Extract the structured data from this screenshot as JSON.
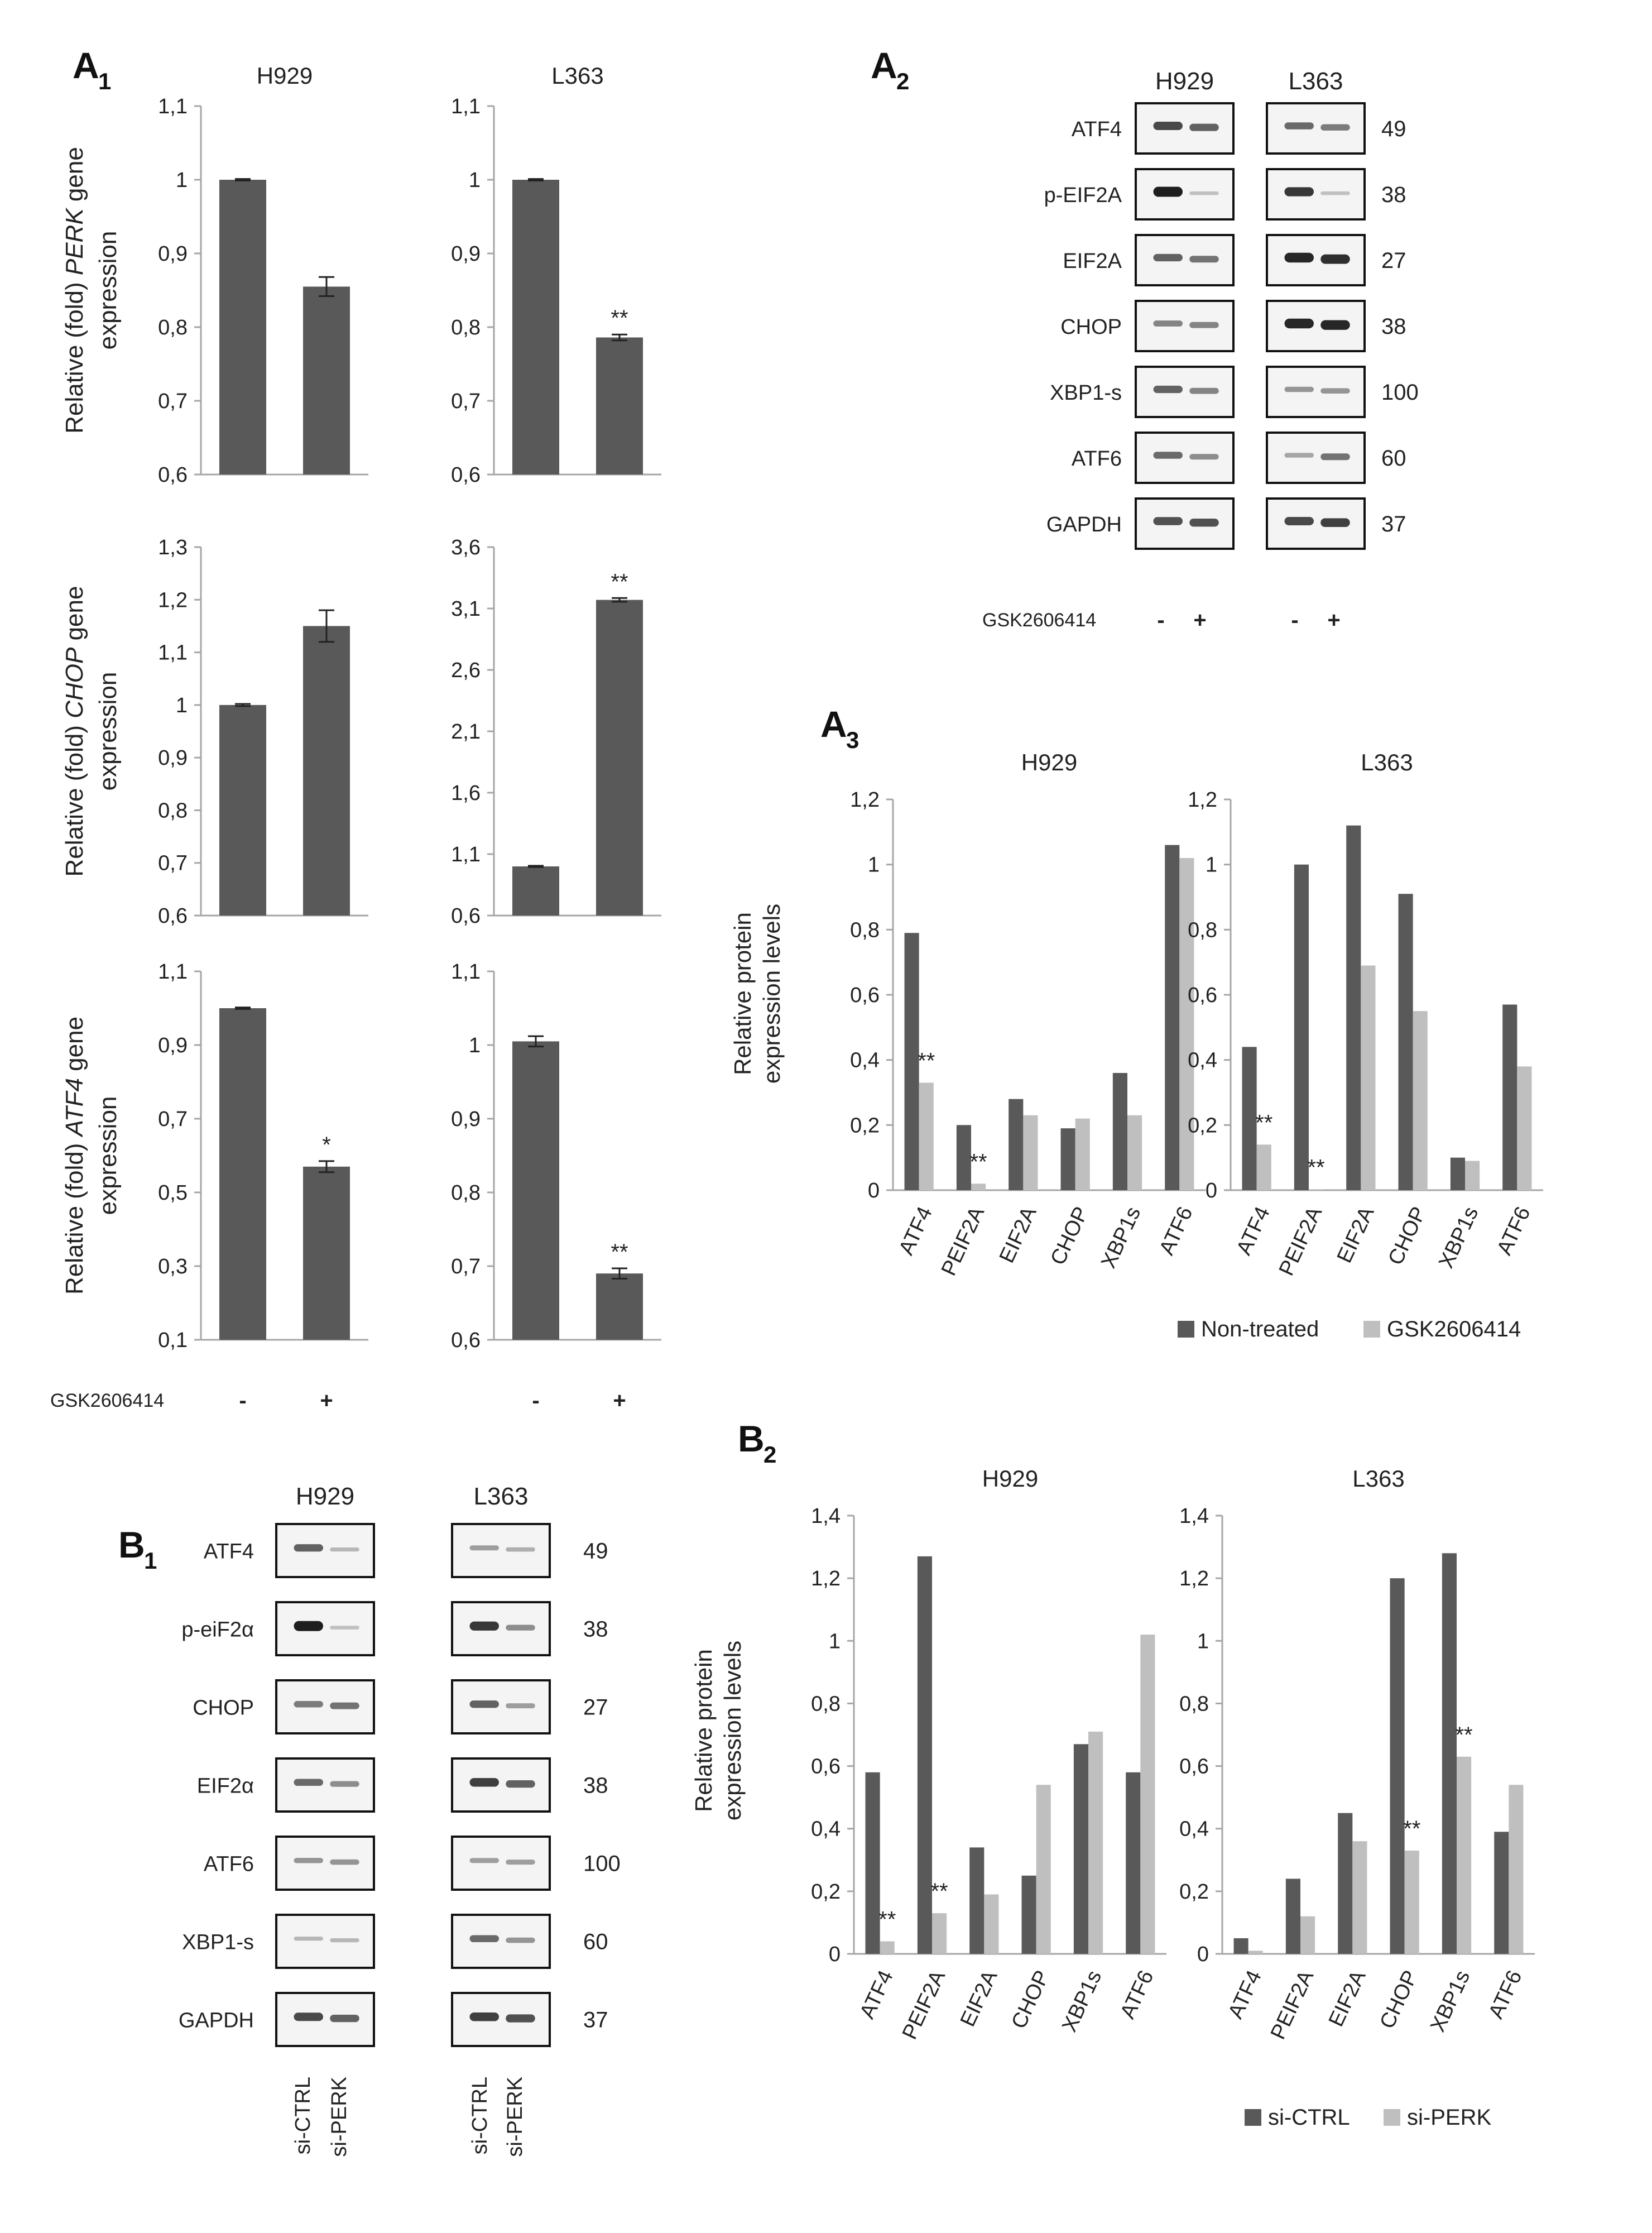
{
  "panels": {
    "A1": {
      "letter": "A",
      "sub": "1"
    },
    "A2": {
      "letter": "A",
      "sub": "2"
    },
    "A3": {
      "letter": "A",
      "sub": "3"
    },
    "B1": {
      "letter": "B",
      "sub": "1"
    },
    "B2": {
      "letter": "B",
      "sub": "2"
    }
  },
  "treatment": {
    "label": "GSK2606414",
    "minus": "-",
    "plus": "+"
  },
  "a1_ylabels": [
    {
      "pre": "Relative (fold) ",
      "gene": "PERK",
      "post": " gene",
      "line2": "expression"
    },
    {
      "pre": "Relative (fold) ",
      "gene": "CHOP",
      "post": " gene",
      "line2": "expression"
    },
    {
      "pre": "Relative (fold) ",
      "gene": "ATF4",
      "post": "  gene",
      "line2": "expression"
    }
  ],
  "western_a2": {
    "columns": [
      "H929",
      "L363"
    ],
    "rows": [
      {
        "name": "ATF4",
        "kda": "49"
      },
      {
        "name": "p-EIF2A",
        "kda": "38"
      },
      {
        "name": "EIF2A",
        "kda": "27"
      },
      {
        "name": "CHOP",
        "kda": "38"
      },
      {
        "name": "XBP1-s",
        "kda": "100"
      },
      {
        "name": "ATF6",
        "kda": "60"
      },
      {
        "name": "GAPDH",
        "kda": "37"
      }
    ]
  },
  "western_b1": {
    "columns": [
      "H929",
      "L363"
    ],
    "rows": [
      {
        "name": "ATF4",
        "kda": "49"
      },
      {
        "name": "p-eiF2α",
        "kda": "38"
      },
      {
        "name": "CHOP",
        "kda": "27"
      },
      {
        "name": "EIF2α",
        "kda": "38"
      },
      {
        "name": "ATF6",
        "kda": "100"
      },
      {
        "name": "XBP1-s",
        "kda": "60"
      },
      {
        "name": "GAPDH",
        "kda": "37"
      }
    ],
    "lanes": [
      "si-CTRL",
      "si-PERK"
    ]
  },
  "chart_data": [
    {
      "id": "A1-PERK-H929",
      "type": "bar",
      "title": "H929",
      "categories": [
        "-",
        "+"
      ],
      "values": [
        1.0,
        0.855
      ],
      "errors": [
        0.001,
        0.013
      ],
      "sig": [
        "",
        ""
      ],
      "ylim": [
        0.6,
        1.1
      ],
      "ticks": [
        "0,6",
        "0,7",
        "0,8",
        "0,9",
        "1",
        "1,1"
      ],
      "ylabel": "Relative (fold) PERK gene expression"
    },
    {
      "id": "A1-PERK-L363",
      "type": "bar",
      "title": "L363",
      "categories": [
        "-",
        "+"
      ],
      "values": [
        1.0,
        0.786
      ],
      "errors": [
        0.001,
        0.004
      ],
      "sig": [
        "",
        "**"
      ],
      "ylim": [
        0.6,
        1.1
      ],
      "ticks": [
        "0,6",
        "0,7",
        "0,8",
        "0,9",
        "1",
        "1,1"
      ]
    },
    {
      "id": "A1-CHOP-H929",
      "type": "bar",
      "title": "",
      "categories": [
        "-",
        "+"
      ],
      "values": [
        1.0,
        1.15
      ],
      "errors": [
        0.002,
        0.03
      ],
      "sig": [
        "",
        ""
      ],
      "ylim": [
        0.6,
        1.3
      ],
      "ticks": [
        "0,6",
        "0,7",
        "0,8",
        "0,9",
        "1",
        "1,1",
        "1,2",
        "1,3"
      ],
      "ylabel": "Relative (fold) CHOP gene expression"
    },
    {
      "id": "A1-CHOP-L363",
      "type": "bar",
      "title": "",
      "categories": [
        "-",
        "+"
      ],
      "values": [
        1.0,
        3.17
      ],
      "errors": [
        0.005,
        0.015
      ],
      "sig": [
        "",
        "**"
      ],
      "ylim": [
        0.6,
        3.6
      ],
      "ticks": [
        "0,6",
        "1,1",
        "1,6",
        "2,1",
        "2,6",
        "3,1",
        "3,6"
      ]
    },
    {
      "id": "A1-ATF4-H929",
      "type": "bar",
      "title": "",
      "categories": [
        "-",
        "+"
      ],
      "values": [
        1.0,
        0.57
      ],
      "errors": [
        0.002,
        0.015
      ],
      "sig": [
        "",
        "*"
      ],
      "ylim": [
        0.1,
        1.1
      ],
      "ticks": [
        "0,1",
        "0,3",
        "0,5",
        "0,7",
        "0,9",
        "1,1"
      ],
      "ylabel": "Relative (fold) ATF4 gene expression"
    },
    {
      "id": "A1-ATF4-L363",
      "type": "bar",
      "title": "",
      "categories": [
        "-",
        "+"
      ],
      "values": [
        1.005,
        0.69
      ],
      "errors": [
        0.007,
        0.007
      ],
      "sig": [
        "",
        "**"
      ],
      "ylim": [
        0.6,
        1.1
      ],
      "ticks": [
        "0,6",
        "0,7",
        "0,8",
        "0,9",
        "1",
        "1,1"
      ]
    },
    {
      "id": "A3-H929",
      "type": "bar",
      "title": "H929",
      "categories": [
        "ATF4",
        "PEIF2A",
        "EIF2A",
        "CHOP",
        "XBP1s",
        "ATF6"
      ],
      "series": [
        {
          "name": "Non-treated",
          "values": [
            0.79,
            0.2,
            0.28,
            0.19,
            0.36,
            1.06
          ]
        },
        {
          "name": "GSK2606414",
          "values": [
            0.33,
            0.02,
            0.23,
            0.22,
            0.23,
            1.02
          ]
        }
      ],
      "sig": [
        "**",
        "**",
        "",
        "",
        "",
        ""
      ],
      "ylim": [
        0,
        1.2
      ],
      "ticks": [
        "0",
        "0,2",
        "0,4",
        "0,6",
        "0,8",
        "1",
        "1,2"
      ],
      "ylabel": "Relative protein expression levels"
    },
    {
      "id": "A3-L363",
      "type": "bar",
      "title": "L363",
      "categories": [
        "ATF4",
        "PEIF2A",
        "EIF2A",
        "CHOP",
        "XBP1s",
        "ATF6"
      ],
      "series": [
        {
          "name": "Non-treated",
          "values": [
            0.44,
            1.0,
            1.12,
            0.91,
            0.1,
            0.57
          ]
        },
        {
          "name": "GSK2606414",
          "values": [
            0.14,
            0.003,
            0.69,
            0.55,
            0.09,
            0.38
          ]
        }
      ],
      "sig": [
        "**",
        "**",
        "",
        "",
        "",
        ""
      ],
      "ylim": [
        0,
        1.2
      ],
      "ticks": [
        "0",
        "0,2",
        "0,4",
        "0,6",
        "0,8",
        "1",
        "1,2"
      ]
    },
    {
      "id": "B2-H929",
      "type": "bar",
      "title": "H929",
      "categories": [
        "ATF4",
        "PEIF2A",
        "EIF2A",
        "CHOP",
        "XBP1s",
        "ATF6"
      ],
      "series": [
        {
          "name": "si-CTRL",
          "values": [
            0.58,
            1.27,
            0.34,
            0.25,
            0.67,
            0.58
          ]
        },
        {
          "name": "si-PERK",
          "values": [
            0.04,
            0.13,
            0.19,
            0.54,
            0.71,
            1.02
          ]
        }
      ],
      "sig": [
        "**",
        "**",
        "",
        "",
        "",
        ""
      ],
      "ylim": [
        0,
        1.4
      ],
      "ticks": [
        "0",
        "0,2",
        "0,4",
        "0,6",
        "0,8",
        "1",
        "1,2",
        "1,4"
      ],
      "ylabel": "Relative protein expression levels"
    },
    {
      "id": "B2-L363",
      "type": "bar",
      "title": "L363",
      "categories": [
        "ATF4",
        "PEIF2A",
        "EIF2A",
        "CHOP",
        "XBP1s",
        "ATF6"
      ],
      "series": [
        {
          "name": "si-CTRL",
          "values": [
            0.05,
            0.24,
            0.45,
            1.2,
            1.28,
            0.39
          ]
        },
        {
          "name": "si-PERK",
          "values": [
            0.01,
            0.12,
            0.36,
            0.33,
            0.63,
            0.54
          ]
        }
      ],
      "sig": [
        "",
        "",
        "",
        "**",
        "**",
        ""
      ],
      "ylim": [
        0,
        1.4
      ],
      "ticks": [
        "0",
        "0,2",
        "0,4",
        "0,6",
        "0,8",
        "1",
        "1,2",
        "1,4"
      ]
    }
  ],
  "legends": {
    "A3": [
      "Non-treated",
      "GSK2606414"
    ],
    "B2": [
      "si-CTRL",
      "si-PERK"
    ]
  },
  "colors": {
    "dark": "#595959",
    "light": "#bfbfbf",
    "axis": "#a6a6a6",
    "text": "#222222"
  }
}
